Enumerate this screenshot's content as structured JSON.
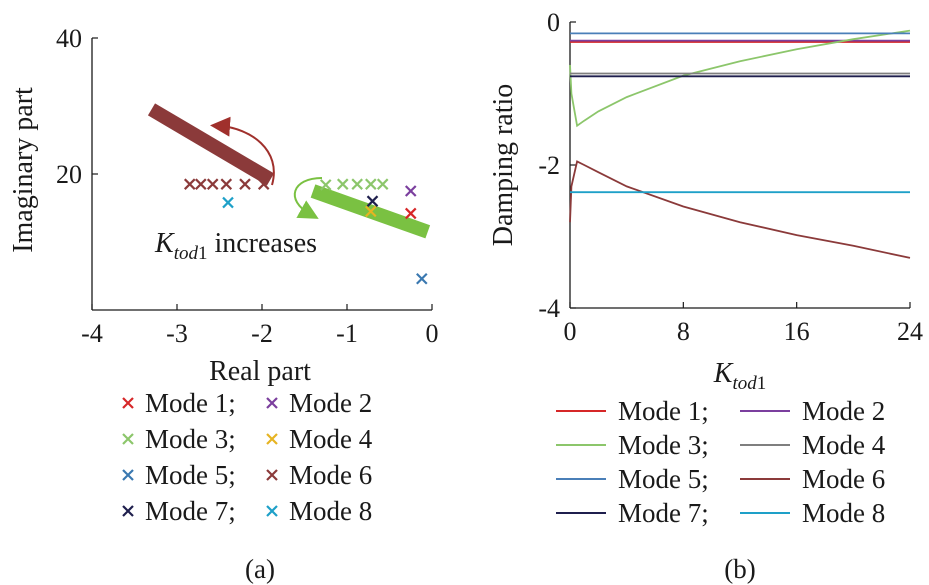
{
  "chart_data": [
    {
      "type": "scatter",
      "caption": "(a)",
      "xlabel": "Real part",
      "ylabel": "Imaginary part",
      "xlim": [
        -4,
        0
      ],
      "ylim": [
        0,
        40
      ],
      "xticks": [
        "-4",
        "-3",
        "-2",
        "-1",
        "0"
      ],
      "yticks": [
        "20",
        "40"
      ],
      "annotation": {
        "symbol": "K",
        "subscript": "tod1",
        "text": " increases"
      },
      "series": [
        {
          "name": "Mode 1",
          "color": "#d62728",
          "points": [
            [
              -0.25,
              14.2
            ]
          ]
        },
        {
          "name": "Mode 2",
          "color": "#7b3f9e",
          "points": [
            [
              -0.25,
              17.5
            ]
          ]
        },
        {
          "name": "Mode 3",
          "color": "#8cc66b",
          "points": [
            [
              -1.25,
              18.4
            ],
            [
              -1.05,
              18.5
            ],
            [
              -0.88,
              18.5
            ],
            [
              -0.72,
              18.5
            ],
            [
              -0.58,
              18.5
            ]
          ]
        },
        {
          "name": "Mode 4",
          "color": "#e6b422",
          "points": [
            [
              -0.72,
              14.5
            ]
          ]
        },
        {
          "name": "Mode 5",
          "color": "#3a78b0",
          "points": [
            [
              -0.12,
              4.6
            ]
          ]
        },
        {
          "name": "Mode 6",
          "color": "#8b3a3a",
          "points": [
            [
              -2.85,
              18.5
            ],
            [
              -2.72,
              18.5
            ],
            [
              -2.58,
              18.5
            ],
            [
              -2.42,
              18.5
            ],
            [
              -2.2,
              18.5
            ],
            [
              -1.98,
              18.5
            ]
          ]
        },
        {
          "name": "Mode 7",
          "color": "#1f1f4d",
          "points": [
            [
              -0.7,
              16.0
            ]
          ]
        },
        {
          "name": "Mode 8",
          "color": "#1ea0c8",
          "points": [
            [
              -2.4,
              15.8
            ]
          ]
        }
      ],
      "trajectories": [
        {
          "mode": "Mode 6",
          "color": "#8b3a3a",
          "from": [
            -3.3,
            29.5
          ],
          "to": [
            -1.9,
            19.2
          ]
        },
        {
          "mode": "Mode 3",
          "color": "#7ac142",
          "from": [
            -1.4,
            17.5
          ],
          "to": [
            -0.05,
            11.5
          ]
        }
      ]
    },
    {
      "type": "line",
      "caption": "(b)",
      "xlabel": {
        "symbol": "K",
        "subscript": "tod1"
      },
      "ylabel": "Damping ratio",
      "xlim": [
        0,
        24
      ],
      "ylim": [
        -4,
        0
      ],
      "xticks": [
        "0",
        "8",
        "16",
        "24"
      ],
      "yticks": [
        "-4",
        "-2",
        "0"
      ],
      "series": [
        {
          "name": "Mode 1",
          "color": "#d62728",
          "x": [
            0,
            24
          ],
          "y": [
            -0.28,
            -0.28
          ]
        },
        {
          "name": "Mode 2",
          "color": "#7b3f9e",
          "x": [
            0,
            24
          ],
          "y": [
            -0.26,
            -0.26
          ]
        },
        {
          "name": "Mode 3",
          "color": "#8cc66b",
          "x": [
            0,
            0.1,
            0.5,
            1,
            2,
            4,
            8,
            12,
            16,
            20,
            24
          ],
          "y": [
            -0.6,
            -1.0,
            -1.45,
            -1.38,
            -1.25,
            -1.05,
            -0.75,
            -0.55,
            -0.38,
            -0.24,
            -0.12
          ]
        },
        {
          "name": "Mode 4",
          "color": "#7f7f7f",
          "x": [
            0,
            24
          ],
          "y": [
            -0.72,
            -0.72
          ]
        },
        {
          "name": "Mode 5",
          "color": "#4a7fb8",
          "x": [
            0,
            24
          ],
          "y": [
            -0.16,
            -0.16
          ]
        },
        {
          "name": "Mode 6",
          "color": "#8b3a3a",
          "x": [
            0,
            0.1,
            0.5,
            1,
            2,
            4,
            8,
            12,
            16,
            20,
            24
          ],
          "y": [
            -2.8,
            -2.3,
            -1.95,
            -2.0,
            -2.1,
            -2.3,
            -2.58,
            -2.8,
            -2.98,
            -3.13,
            -3.3
          ]
        },
        {
          "name": "Mode 7",
          "color": "#1f1f4d",
          "x": [
            0,
            24
          ],
          "y": [
            -0.76,
            -0.76
          ]
        },
        {
          "name": "Mode 8",
          "color": "#1ea0c8",
          "x": [
            0,
            24
          ],
          "y": [
            -2.38,
            -2.38
          ]
        }
      ]
    }
  ],
  "legend_a": [
    [
      {
        "label": "Mode 1;",
        "color": "#d62728"
      },
      {
        "label": "Mode 2",
        "color": "#7b3f9e"
      }
    ],
    [
      {
        "label": "Mode 3;",
        "color": "#8cc66b"
      },
      {
        "label": "Mode 4",
        "color": "#e6b422"
      }
    ],
    [
      {
        "label": "Mode 5;",
        "color": "#3a78b0"
      },
      {
        "label": "Mode 6",
        "color": "#8b3a3a"
      }
    ],
    [
      {
        "label": "Mode 7;",
        "color": "#1f1f4d"
      },
      {
        "label": "Mode 8",
        "color": "#1ea0c8"
      }
    ]
  ],
  "legend_b": [
    [
      {
        "label": "Mode 1;",
        "color": "#d62728"
      },
      {
        "label": "Mode 2",
        "color": "#7b3f9e"
      }
    ],
    [
      {
        "label": "Mode 3;",
        "color": "#8cc66b"
      },
      {
        "label": "Mode 4",
        "color": "#7f7f7f"
      }
    ],
    [
      {
        "label": "Mode 5;",
        "color": "#4a7fb8"
      },
      {
        "label": "Mode 6",
        "color": "#8b3a3a"
      }
    ],
    [
      {
        "label": "Mode 7;",
        "color": "#1f1f4d"
      },
      {
        "label": "Mode 8",
        "color": "#1ea0c8"
      }
    ]
  ]
}
